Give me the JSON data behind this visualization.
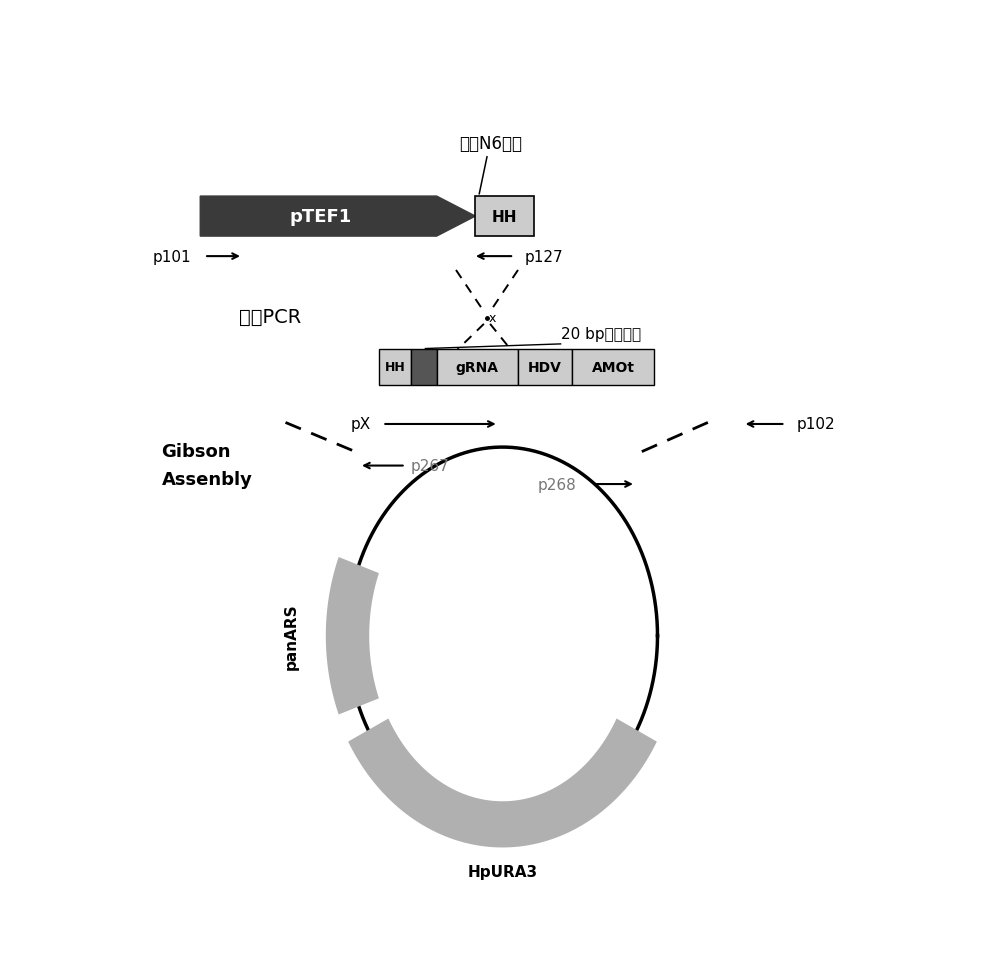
{
  "bg_color": "#ffffff",
  "dark_gray": "#3a3a3a",
  "med_gray": "#777777",
  "light_gray": "#b0b0b0",
  "lighter_gray": "#cccccc",
  "figsize": [
    9.82,
    9.62
  ],
  "dpi": 100,
  "top_label": "可变N6序列",
  "fusion_pcr": "融合PCR",
  "bp_label": "20 bp靶向序列",
  "gibson_line1": "Gibson",
  "gibson_line2": "Assenbly"
}
